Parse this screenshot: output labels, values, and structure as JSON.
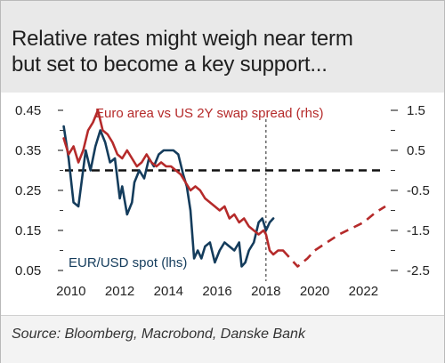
{
  "title_lines": [
    "Relative rates might weigh near term",
    "but set to become a key support..."
  ],
  "source": "Source: Bloomberg, Macrobond, Danske Bank",
  "colors": {
    "eurusd": "#143c5c",
    "spread": "#b52a2a",
    "reference": "#111111",
    "text": "#222222",
    "header_bg": "#e9e9e9"
  },
  "chart_data": {
    "type": "line",
    "x_ticks": [
      "2010",
      "2012",
      "2014",
      "2016",
      "2018",
      "2020",
      "2022"
    ],
    "x_range": [
      2009.75,
      2022.9
    ],
    "y_left": {
      "ticks": [
        "0.45",
        "0.35",
        "0.25",
        "0.15",
        "0.05"
      ],
      "range": [
        0.45,
        0.05
      ]
    },
    "y_right": {
      "ticks": [
        "1.5",
        "0.5",
        "-0.5",
        "-1.5",
        "-2.5"
      ],
      "range": [
        1.5,
        -2.5
      ]
    },
    "vertical_marker_x": 2018.0,
    "horizontal_reference_right": 0.0,
    "annotations": {
      "spread_label": "Euro area vs US 2Y swap spread (rhs)",
      "eurusd_label": "EUR/USD spot (lhs)"
    },
    "series": [
      {
        "name": "EUR/USD spot (lhs)",
        "axis": "left",
        "color": "#143c5c",
        "style": "solid",
        "x": [
          2009.7,
          2009.9,
          2010.1,
          2010.3,
          2010.45,
          2010.6,
          2010.8,
          2011.0,
          2011.2,
          2011.4,
          2011.6,
          2011.8,
          2012.0,
          2012.1,
          2012.3,
          2012.5,
          2012.6,
          2012.8,
          2013.0,
          2013.2,
          2013.4,
          2013.6,
          2013.8,
          2014.0,
          2014.2,
          2014.4,
          2014.6,
          2014.75,
          2014.9,
          2015.05,
          2015.2,
          2015.35,
          2015.5,
          2015.7,
          2015.9,
          2016.1,
          2016.3,
          2016.5,
          2016.7,
          2016.9,
          2017.0,
          2017.15,
          2017.3,
          2017.5,
          2017.7,
          2017.85,
          2018.0,
          2018.15,
          2018.3
        ],
        "values": [
          0.41,
          0.33,
          0.22,
          0.21,
          0.28,
          0.35,
          0.3,
          0.36,
          0.4,
          0.37,
          0.32,
          0.33,
          0.23,
          0.26,
          0.19,
          0.22,
          0.27,
          0.3,
          0.28,
          0.33,
          0.31,
          0.34,
          0.35,
          0.35,
          0.35,
          0.34,
          0.29,
          0.26,
          0.2,
          0.08,
          0.1,
          0.08,
          0.11,
          0.12,
          0.07,
          0.1,
          0.12,
          0.11,
          0.1,
          0.12,
          0.06,
          0.07,
          0.1,
          0.12,
          0.17,
          0.18,
          0.15,
          0.17,
          0.18
        ]
      },
      {
        "name": "Euro area vs US 2Y swap spread (rhs)",
        "axis": "right",
        "color": "#b52a2a",
        "style": "solid",
        "x": [
          2009.7,
          2009.9,
          2010.1,
          2010.3,
          2010.5,
          2010.7,
          2010.9,
          2011.1,
          2011.3,
          2011.5,
          2011.7,
          2011.9,
          2012.1,
          2012.3,
          2012.5,
          2012.7,
          2012.9,
          2013.1,
          2013.3,
          2013.5,
          2013.7,
          2013.9,
          2014.1,
          2014.3,
          2014.5,
          2014.7,
          2014.9,
          2015.1,
          2015.3,
          2015.5,
          2015.7,
          2015.9,
          2016.1,
          2016.3,
          2016.5,
          2016.7,
          2016.9,
          2017.1,
          2017.3,
          2017.5,
          2017.7,
          2017.9,
          2018.0,
          2018.15,
          2018.3,
          2018.5,
          2018.7
        ],
        "values": [
          0.8,
          0.4,
          0.6,
          0.2,
          0.5,
          1.0,
          1.2,
          1.5,
          1.0,
          0.9,
          0.7,
          0.4,
          0.3,
          0.5,
          0.3,
          0.1,
          0.2,
          0.4,
          0.2,
          0.1,
          0.2,
          0.1,
          0.1,
          0.0,
          -0.1,
          -0.3,
          -0.5,
          -0.4,
          -0.5,
          -0.7,
          -0.8,
          -0.9,
          -1.0,
          -0.9,
          -1.2,
          -1.1,
          -1.3,
          -1.2,
          -1.4,
          -1.5,
          -1.6,
          -1.5,
          -1.6,
          -2.0,
          -2.1,
          -2.0,
          -2.0
        ]
      },
      {
        "name": "",
        "axis": "right",
        "color": "#b52a2a",
        "style": "dashed",
        "x": [
          2018.7,
          2019.0,
          2019.3,
          2019.7,
          2020.0,
          2020.5,
          2021.0,
          2021.5,
          2022.0,
          2022.5,
          2022.9
        ],
        "values": [
          -2.0,
          -2.2,
          -2.4,
          -2.2,
          -2.0,
          -1.8,
          -1.6,
          -1.45,
          -1.3,
          -1.05,
          -0.9
        ]
      }
    ]
  }
}
